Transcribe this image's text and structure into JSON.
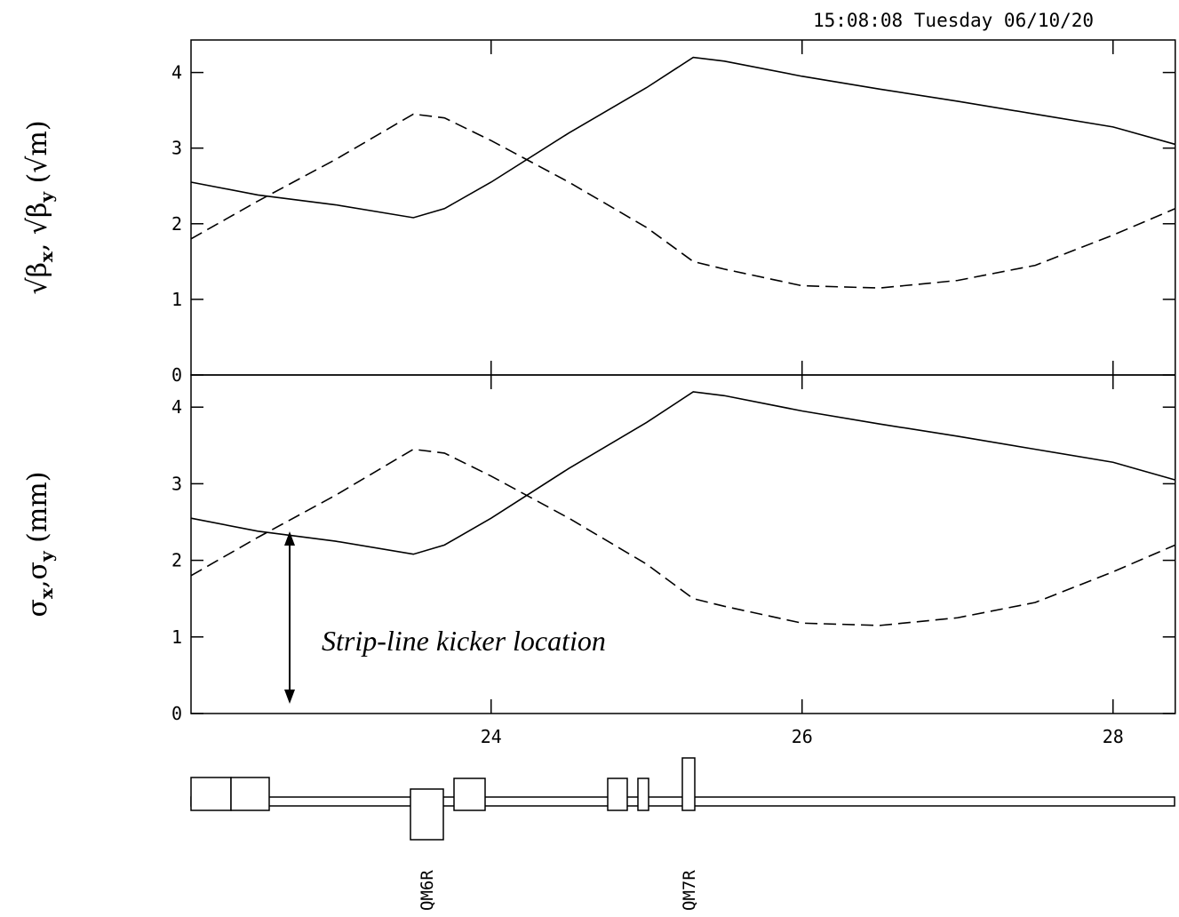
{
  "timestamp": "15:08:08 Tuesday 06/10/20",
  "annotation": "Strip-line kicker location",
  "magnets": [
    "QM6R",
    "QM7R"
  ],
  "chart_data": [
    {
      "type": "line",
      "ylabel": [
        "√β",
        "x",
        ", √β",
        "y",
        " (√m)"
      ],
      "xlim": [
        22.07,
        28.4
      ],
      "ylim": [
        0,
        4.43
      ],
      "yticks": [
        0,
        1,
        2,
        3,
        4
      ],
      "x": [
        22.07,
        22.5,
        23,
        23.5,
        23.7,
        24,
        24.5,
        25,
        25.3,
        25.5,
        26,
        26.5,
        27,
        27.5,
        28,
        28.4
      ],
      "series": [
        {
          "color": "#000000",
          "linestyle": "solid",
          "values": [
            2.55,
            2.38,
            2.25,
            2.08,
            2.2,
            2.55,
            3.2,
            3.8,
            4.2,
            4.15,
            3.95,
            3.78,
            3.62,
            3.45,
            3.28,
            3.05
          ]
        },
        {
          "color": "#000000",
          "linestyle": "dashed",
          "values": [
            1.8,
            2.3,
            2.85,
            3.45,
            3.4,
            3.1,
            2.55,
            1.95,
            1.5,
            1.4,
            1.18,
            1.15,
            1.25,
            1.45,
            1.85,
            2.2
          ]
        }
      ]
    },
    {
      "type": "line",
      "ylabel": [
        "σ",
        "x",
        ",σ",
        "y",
        " (mm)"
      ],
      "xlim": [
        22.07,
        28.4
      ],
      "ylim": [
        0,
        4.42
      ],
      "yticks": [
        0,
        1,
        2,
        3,
        4
      ],
      "xticks": [
        24,
        26,
        28
      ],
      "x": [
        22.07,
        22.5,
        23,
        23.5,
        23.7,
        24,
        24.5,
        25,
        25.3,
        25.5,
        26,
        26.5,
        27,
        27.5,
        28,
        28.4
      ],
      "series": [
        {
          "color": "#000000",
          "linestyle": "solid",
          "values": [
            2.55,
            2.38,
            2.25,
            2.08,
            2.2,
            2.55,
            3.2,
            3.8,
            4.2,
            4.15,
            3.95,
            3.78,
            3.62,
            3.45,
            3.28,
            3.05
          ]
        },
        {
          "color": "#000000",
          "linestyle": "dashed",
          "values": [
            1.8,
            2.3,
            2.85,
            3.45,
            3.4,
            3.1,
            2.55,
            1.95,
            1.5,
            1.4,
            1.18,
            1.15,
            1.25,
            1.45,
            1.85,
            2.2
          ]
        }
      ]
    }
  ]
}
